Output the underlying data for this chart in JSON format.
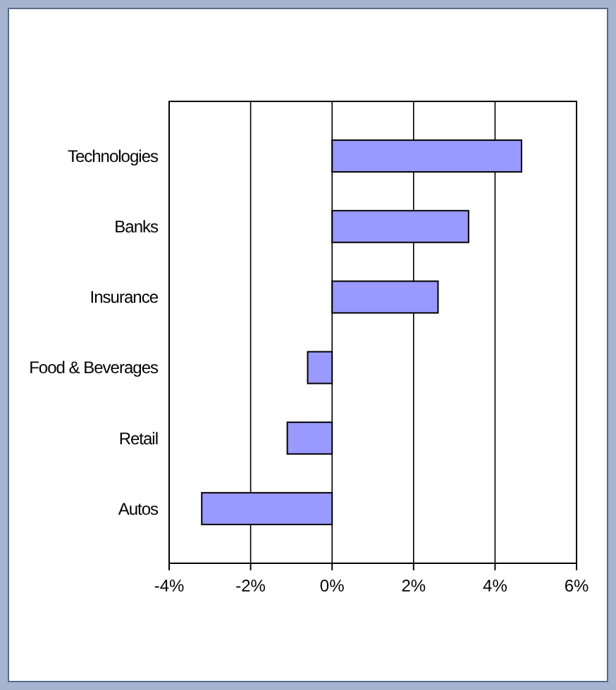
{
  "chart_data": {
    "type": "bar",
    "orientation": "horizontal",
    "categories": [
      "Technologies",
      "Banks",
      "Insurance",
      "Food & Beverages",
      "Retail",
      "Autos"
    ],
    "values": [
      4.65,
      3.35,
      2.6,
      -0.6,
      -1.1,
      -3.2
    ],
    "color": "#9999ff",
    "xlim": [
      -4,
      6
    ],
    "xticks": [
      {
        "value": -4,
        "label": "-4%"
      },
      {
        "value": -2,
        "label": "-2%"
      },
      {
        "value": 0,
        "label": "0%"
      },
      {
        "value": 2,
        "label": "2%"
      },
      {
        "value": 4,
        "label": "4%"
      },
      {
        "value": 6,
        "label": "6%"
      }
    ],
    "grid": "x"
  }
}
